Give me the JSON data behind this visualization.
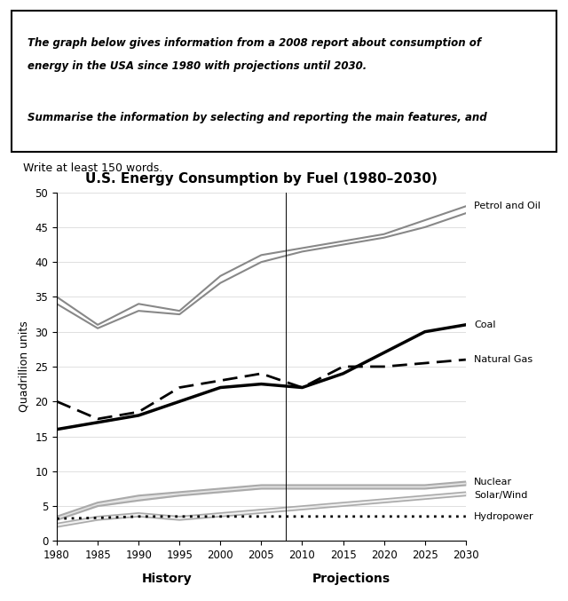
{
  "title": "U.S. Energy Consumption by Fuel (1980–2030)",
  "ylabel": "Quadrillion units",
  "xlabel_history": "History",
  "xlabel_projections": "Projections",
  "years": [
    1980,
    1985,
    1990,
    1995,
    2000,
    2005,
    2010,
    2015,
    2020,
    2025,
    2030
  ],
  "petrol_oil_upper": [
    35,
    31,
    34,
    33,
    38,
    41,
    42,
    43,
    44,
    46,
    48
  ],
  "petrol_oil_lower": [
    34,
    30.5,
    33,
    32.5,
    37,
    40,
    41.5,
    42.5,
    43.5,
    45,
    47
  ],
  "coal": [
    16,
    17,
    18,
    20,
    22,
    22.5,
    22,
    24,
    27,
    30,
    31
  ],
  "natural_gas": [
    20,
    17.5,
    18.5,
    22,
    23,
    24,
    22,
    25,
    25,
    25.5,
    26
  ],
  "nuclear_upper": [
    3.5,
    5.5,
    6.5,
    7,
    7.5,
    8,
    8,
    8,
    8,
    8,
    8.5
  ],
  "nuclear_lower": [
    3,
    5,
    5.8,
    6.5,
    7,
    7.5,
    7.5,
    7.5,
    7.5,
    7.5,
    8
  ],
  "solar_wind_upper": [
    2.5,
    3.5,
    4,
    3.5,
    4,
    4.5,
    5,
    5.5,
    6,
    6.5,
    7
  ],
  "solar_wind_lower": [
    2,
    3,
    3.5,
    3,
    3.5,
    4,
    4.5,
    5,
    5.5,
    6,
    6.5
  ],
  "hydropower": [
    3.2,
    3.3,
    3.5,
    3.5,
    3.5,
    3.5,
    3.5,
    3.5,
    3.5,
    3.5,
    3.5
  ],
  "history_cutoff": 2008,
  "ylim": [
    0,
    50
  ],
  "yticks": [
    0,
    5,
    10,
    15,
    20,
    25,
    30,
    35,
    40,
    45,
    50
  ],
  "xticks": [
    1980,
    1985,
    1990,
    1995,
    2000,
    2005,
    2010,
    2015,
    2020,
    2025,
    2030
  ],
  "text_box": "The graph below gives information from a 2008 report about consumption of\nenergy in the USA since 1980 with projections until 2030.\n\nSummarise the information by selecting and reporting the main features, and\nmake comparisons where relevant.",
  "write_text": "Write at least 150 words.",
  "line_color_petrol": "#888888",
  "line_color_coal": "#000000",
  "line_color_natural_gas": "#000000",
  "line_color_nuclear": "#aaaaaa",
  "line_color_solar": "#aaaaaa",
  "line_color_hydro": "#000000"
}
